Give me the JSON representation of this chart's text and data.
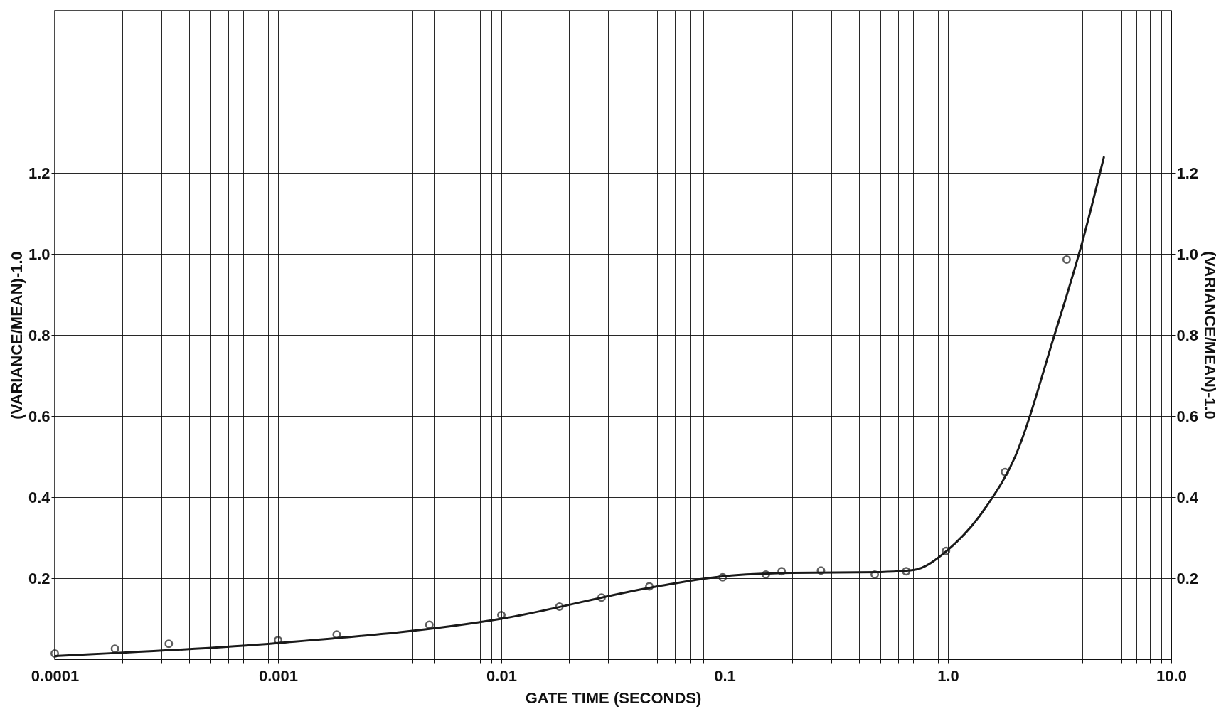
{
  "chart_data": {
    "type": "scatter",
    "xlabel": "GATE TIME (SECONDS)",
    "ylabel": "(VARIANCE/MEAN)-1.0",
    "y2label": "(VARIANCE/MEAN)-1.0",
    "log": "x",
    "grid": true,
    "xlim": [
      0.0001,
      10
    ],
    "ylim": [
      0,
      1.6
    ],
    "y2lim": [
      0,
      1.6
    ],
    "xticks": [
      "0.0001",
      {
        "value": 0.0002,
        "label": null
      },
      {
        "value": 0.0003,
        "label": null
      },
      {
        "value": 0.0004,
        "label": null
      },
      {
        "value": 0.0005,
        "label": null
      },
      {
        "value": 0.0006,
        "label": null
      },
      {
        "value": 0.0007,
        "label": null
      },
      {
        "value": 0.0008,
        "label": null
      },
      {
        "value": 0.0009,
        "label": null
      },
      "0.001",
      {
        "value": 0.002,
        "label": null
      },
      {
        "value": 0.003,
        "label": null
      },
      {
        "value": 0.004,
        "label": null
      },
      {
        "value": 0.005,
        "label": null
      },
      {
        "value": 0.006,
        "label": null
      },
      {
        "value": 0.007,
        "label": null
      },
      {
        "value": 0.008,
        "label": null
      },
      {
        "value": 0.009,
        "label": null
      },
      "0.01",
      {
        "value": 0.02,
        "label": null
      },
      {
        "value": 0.03,
        "label": null
      },
      {
        "value": 0.04,
        "label": null
      },
      {
        "value": 0.05,
        "label": null
      },
      {
        "value": 0.06,
        "label": null
      },
      {
        "value": 0.07,
        "label": null
      },
      {
        "value": 0.08,
        "label": null
      },
      {
        "value": 0.09,
        "label": null
      },
      "0.1",
      {
        "value": 0.2,
        "label": null
      },
      {
        "value": 0.3,
        "label": null
      },
      {
        "value": 0.4,
        "label": null
      },
      {
        "value": 0.5,
        "label": null
      },
      {
        "value": 0.6,
        "label": null
      },
      {
        "value": 0.7,
        "label": null
      },
      {
        "value": 0.8,
        "label": null
      },
      {
        "value": 0.9,
        "label": null
      },
      {
        "value": 1,
        "label": "1.0"
      },
      {
        "value": 2,
        "label": null
      },
      {
        "value": 3,
        "label": null
      },
      {
        "value": 4,
        "label": null
      },
      {
        "value": 5,
        "label": null
      },
      {
        "value": 6,
        "label": null
      },
      {
        "value": 7,
        "label": null
      },
      {
        "value": 8,
        "label": null
      },
      {
        "value": 9,
        "label": null
      },
      {
        "value": 10,
        "label": "10.0"
      }
    ],
    "yticks": [
      0.2,
      0.4,
      0.6,
      0.8,
      {
        "value": 1.0,
        "label": "1.0"
      },
      1.2
    ],
    "y2ticks": [
      0.2,
      0.4,
      0.6,
      0.8,
      {
        "value": 1.0,
        "label": "1.0"
      },
      1.2
    ],
    "series": [
      {
        "color": "#1a1a1a",
        "marker": "circle",
        "x": [
          0.0001,
          0.000186,
          0.000324,
          0.001,
          0.00183,
          0.00476,
          0.01,
          0.0182,
          0.0281,
          0.046,
          0.098,
          0.153,
          0.18,
          0.27,
          0.47,
          0.65,
          0.98,
          1.8,
          3.4
        ],
        "values": [
          0.014,
          0.026,
          0.038,
          0.047,
          0.061,
          0.085,
          0.109,
          0.13,
          0.152,
          0.18,
          0.202,
          0.209,
          0.217,
          0.219,
          0.209,
          0.217,
          0.267,
          0.462,
          0.986
        ]
      },
      {
        "type": "line",
        "color": "#1a1a1a",
        "marker": "none",
        "line_style": "solid",
        "x": [
          0.0001,
          0.001,
          0.01,
          0.05,
          0.1,
          0.2,
          0.5,
          0.7,
          1.0,
          1.5,
          2,
          3,
          4,
          5
        ],
        "values": [
          0.008,
          0.04,
          0.1,
          0.18,
          0.205,
          0.213,
          0.215,
          0.22,
          0.27,
          0.38,
          0.5,
          0.8,
          1.03,
          1.24
        ]
      }
    ]
  }
}
